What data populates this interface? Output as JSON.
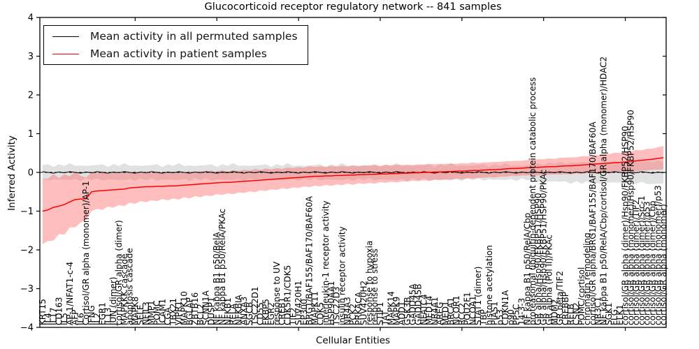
{
  "window": {
    "title": "Glucocorticoid receptor regulatory network -- 841 samples"
  },
  "chart_data": {
    "type": "line",
    "title": "Glucocorticoid receptor regulatory network -- 841 samples",
    "xlabel": "Cellular Entities",
    "ylabel": "Inferred Activity",
    "ylim": [
      -4,
      4
    ],
    "yticks": [
      {
        "v": 4,
        "label": "4"
      },
      {
        "v": 3,
        "label": "3"
      },
      {
        "v": 2,
        "label": "2"
      },
      {
        "v": 1,
        "label": "1"
      },
      {
        "v": 0,
        "label": "0"
      },
      {
        "v": -1,
        "label": "−1"
      },
      {
        "v": -2,
        "label": "−2"
      },
      {
        "v": -3,
        "label": "−3"
      },
      {
        "v": -4,
        "label": "−4"
      }
    ],
    "grid": false,
    "legend_position": "upper left",
    "zero_line": {
      "y": 0,
      "style": "dashed",
      "color": "#000000"
    },
    "x_major_tick_indices": [
      17,
      32,
      47,
      62,
      77,
      92,
      107
    ],
    "colors": {
      "permuted_line": "#000000",
      "patient_line": "#ff0000",
      "permuted_band": "#bdbdbd",
      "patient_band": "#ff6f6f"
    },
    "legend": [
      {
        "label": "Mean activity in all permuted samples",
        "color": "#000000"
      },
      {
        "label": "Mean activity in patient samples",
        "color": "#ff0000"
      }
    ],
    "entities": [
      "KRT15",
      "IL4",
      "IL17",
      "CD163",
      "IL5",
      "AP-1/NFAT1-c-4",
      "AFP",
      "IL6",
      "Cortisol/GR alpha (monomer)/AP-1",
      "IFNG",
      "IL2",
      "EGR1",
      "IL13",
      "JUN (dimer)",
      "cortisol/GR alpha (dimer)",
      "MAPKKK cascade",
      "apoptosis cascade",
      "MAPK8",
      "SELE",
      "NFIL3",
      "MMP1",
      "POMC",
      "ICAM1",
      "CGA",
      "TBX21",
      "VIPR1",
      "MAPK10",
      "BGLAP",
      "ZBTB16",
      "BCL2",
      "SCNN1A",
      "DUSP1",
      "NF kappa B1 p50/RelA",
      "NF kappa B1 p50/RelA/PKAc",
      "NFKB1",
      "RELA",
      "NFKBIA",
      "ANXA3",
      "SGCB",
      "TSC22D1",
      "CD55",
      "FKBP5",
      "EGR2",
      "response to UV",
      "CREB1",
      "CDK5R1/CDK5",
      "TIF2",
      "SUV420H1",
      "EP300",
      "BRG1/BAF155/BAF170/BAF60A",
      "MAPK11",
      "CDK5",
      "interleukin-1 receptor activity",
      "HSP90AA1",
      "TSC22D3",
      "insulin receptor activity",
      "NR4A3",
      "PCK2",
      "PRKACA",
      "SUV420H2",
      "response to hypoxia",
      "response to stress",
      "STIP1",
      "TAT",
      "MAPK14",
      "MAPK9",
      "ADD1",
      "GSK3B",
      "GADD45A",
      "GADD45B",
      "NFATC4",
      "MED14",
      "NR4A1",
      "AREG",
      "MED1",
      "BRCA1",
      "NCOR1",
      "RCC2",
      "POU2F1",
      "NCOA1",
      "STAT1 (dimer)",
      "TBP",
      "histone acetylation",
      "PIAS1",
      "p53",
      "CDKN1A",
      "p90",
      "PP5C",
      "14-3-3",
      "NF kappa B1 p50/RelA/Cbp",
      "proteasomal ubiquitin-dependent protein catabolic process",
      "GR alpha/Hsp90/FKBP51/HSP90",
      "GR alpha/Hsp90/FKBP51/HSP90/PKAc",
      "GR alpha (Pol II)/PKAc",
      "MDM2",
      "GR beta/TIF2",
      "CREBBP",
      "RELB",
      "CSN2",
      "POMC/cortisol",
      "chromatin remodeling",
      "cortisol/GR alpha/BRG1/BAF155/BAF170/BAF60A",
      "NR3C1",
      "NF kappa B1 p50/RelA/Cbp/cortisol/GR alpha (monomer)/HDAC2",
      "SGK1",
      "FLG",
      "ELK1",
      "cortisol/GR alpha (dimer)/Hsp90/FKBP52/HSP90",
      "cortisol/GR alpha (monomer)/Hsp90/FKBP52/HSP90",
      "cortisol/GR alpha (dimer)/TIF2",
      "cortisol/GR alpha (dimer)/Src-1",
      "cortisol/GR alpha (dimer)/p53",
      "cortisol/GR alpha (dimer)/Cbp",
      "cortisol/GR alpha (monomer)/p53",
      "cortisol/GR alpha (monomer)"
    ],
    "series": [
      {
        "name": "Mean activity in patient samples",
        "mean": [
          -1.0,
          -0.97,
          -0.9,
          -0.87,
          -0.83,
          -0.76,
          -0.7,
          -0.69,
          -0.68,
          -0.5,
          -0.48,
          -0.47,
          -0.46,
          -0.45,
          -0.44,
          -0.43,
          -0.4,
          -0.39,
          -0.38,
          -0.37,
          -0.37,
          -0.36,
          -0.36,
          -0.35,
          -0.35,
          -0.34,
          -0.33,
          -0.32,
          -0.31,
          -0.3,
          -0.29,
          -0.28,
          -0.27,
          -0.26,
          -0.26,
          -0.25,
          -0.24,
          -0.23,
          -0.22,
          -0.21,
          -0.2,
          -0.19,
          -0.18,
          -0.17,
          -0.16,
          -0.15,
          -0.14,
          -0.13,
          -0.12,
          -0.11,
          -0.1,
          -0.1,
          -0.09,
          -0.09,
          -0.08,
          -0.08,
          -0.07,
          -0.07,
          -0.06,
          -0.06,
          -0.05,
          -0.05,
          -0.04,
          -0.04,
          -0.03,
          -0.03,
          -0.02,
          -0.02,
          -0.01,
          -0.01,
          0.0,
          0.0,
          0.01,
          0.01,
          0.02,
          0.02,
          0.03,
          0.03,
          0.04,
          0.05,
          0.05,
          0.06,
          0.07,
          0.07,
          0.08,
          0.09,
          0.1,
          0.1,
          0.11,
          0.12,
          0.13,
          0.13,
          0.14,
          0.15,
          0.15,
          0.16,
          0.17,
          0.17,
          0.18,
          0.19,
          0.2,
          0.21,
          0.22,
          0.23,
          0.24,
          0.25,
          0.26,
          0.27,
          0.28,
          0.3,
          0.31,
          0.33,
          0.34,
          0.36,
          0.38
        ],
        "spread": [
          0.85,
          0.8,
          0.86,
          0.72,
          0.78,
          0.66,
          0.72,
          0.6,
          0.55,
          0.5,
          0.46,
          0.5,
          0.42,
          0.46,
          0.4,
          0.44,
          0.38,
          0.42,
          0.36,
          0.4,
          0.35,
          0.38,
          0.33,
          0.37,
          0.32,
          0.36,
          0.31,
          0.35,
          0.3,
          0.34,
          0.3,
          0.33,
          0.29,
          0.32,
          0.28,
          0.31,
          0.28,
          0.3,
          0.27,
          0.3,
          0.26,
          0.29,
          0.26,
          0.28,
          0.25,
          0.28,
          0.25,
          0.27,
          0.24,
          0.27,
          0.24,
          0.26,
          0.23,
          0.26,
          0.23,
          0.25,
          0.22,
          0.25,
          0.22,
          0.24,
          0.22,
          0.24,
          0.21,
          0.23,
          0.21,
          0.23,
          0.21,
          0.22,
          0.2,
          0.22,
          0.2,
          0.22,
          0.2,
          0.21,
          0.2,
          0.21,
          0.19,
          0.21,
          0.19,
          0.21,
          0.19,
          0.2,
          0.19,
          0.2,
          0.19,
          0.2,
          0.19,
          0.2,
          0.19,
          0.2,
          0.2,
          0.21,
          0.2,
          0.21,
          0.2,
          0.22,
          0.21,
          0.22,
          0.21,
          0.23,
          0.22,
          0.24,
          0.22,
          0.25,
          0.23,
          0.26,
          0.24,
          0.27,
          0.25,
          0.28,
          0.26,
          0.28,
          0.27,
          0.29,
          0.3
        ]
      },
      {
        "name": "Mean activity in all permuted samples",
        "mean": [
          0.02,
          0.0,
          -0.02,
          0.01,
          -0.01,
          0.02,
          0.0,
          -0.02,
          0.01,
          -0.01,
          0.02,
          0.0,
          -0.02,
          0.01,
          -0.01,
          0.02,
          0.0,
          -0.02,
          0.01,
          -0.01,
          0.02,
          0.0,
          -0.02,
          0.01,
          -0.01,
          0.02,
          0.0,
          -0.02,
          0.01,
          -0.01,
          0.02,
          0.0,
          -0.02,
          0.01,
          -0.01,
          0.02,
          0.0,
          -0.02,
          0.01,
          -0.01,
          0.02,
          0.0,
          -0.02,
          0.01,
          -0.01,
          0.02,
          0.0,
          -0.02,
          0.01,
          -0.01,
          0.02,
          0.0,
          -0.02,
          0.01,
          -0.01,
          0.02,
          0.0,
          -0.02,
          0.01,
          -0.01,
          0.02,
          0.0,
          -0.02,
          0.01,
          -0.01,
          0.02,
          0.0,
          -0.02,
          0.01,
          -0.01,
          0.02,
          0.0,
          -0.02,
          0.01,
          -0.01,
          0.02,
          0.0,
          -0.02,
          0.01,
          -0.01,
          0.02,
          0.0,
          -0.02,
          0.01,
          -0.01,
          0.02,
          0.0,
          -0.02,
          0.01,
          -0.01,
          0.02,
          0.0,
          -0.02,
          0.01,
          -0.01,
          0.02,
          0.0,
          -0.02,
          0.01,
          -0.01,
          0.02,
          0.0,
          -0.02,
          0.01,
          -0.01,
          0.02,
          0.0,
          -0.02,
          0.01,
          -0.01,
          0.02,
          0.0,
          -0.02,
          0.01,
          -0.01
        ],
        "spread": [
          0.17,
          0.21,
          0.16,
          0.2,
          0.18,
          0.22,
          0.17,
          0.2,
          0.16,
          0.19,
          0.17,
          0.21,
          0.16,
          0.2,
          0.18,
          0.22,
          0.17,
          0.2,
          0.16,
          0.19,
          0.17,
          0.21,
          0.16,
          0.2,
          0.18,
          0.22,
          0.17,
          0.2,
          0.16,
          0.19,
          0.17,
          0.21,
          0.16,
          0.2,
          0.18,
          0.22,
          0.17,
          0.2,
          0.16,
          0.19,
          0.17,
          0.21,
          0.16,
          0.2,
          0.18,
          0.22,
          0.17,
          0.2,
          0.16,
          0.19,
          0.17,
          0.21,
          0.16,
          0.2,
          0.18,
          0.22,
          0.17,
          0.2,
          0.16,
          0.19,
          0.17,
          0.21,
          0.16,
          0.2,
          0.18,
          0.22,
          0.17,
          0.2,
          0.16,
          0.19,
          0.17,
          0.21,
          0.16,
          0.2,
          0.18,
          0.22,
          0.17,
          0.2,
          0.16,
          0.19,
          0.17,
          0.21,
          0.16,
          0.2,
          0.18,
          0.22,
          0.17,
          0.2,
          0.16,
          0.19,
          0.2,
          0.24,
          0.21,
          0.25,
          0.22,
          0.26,
          0.23,
          0.27,
          0.24,
          0.28,
          0.25,
          0.28,
          0.26,
          0.29,
          0.25,
          0.28,
          0.26,
          0.3,
          0.27,
          0.29,
          0.26,
          0.3,
          0.28,
          0.3,
          0.28
        ]
      }
    ]
  }
}
